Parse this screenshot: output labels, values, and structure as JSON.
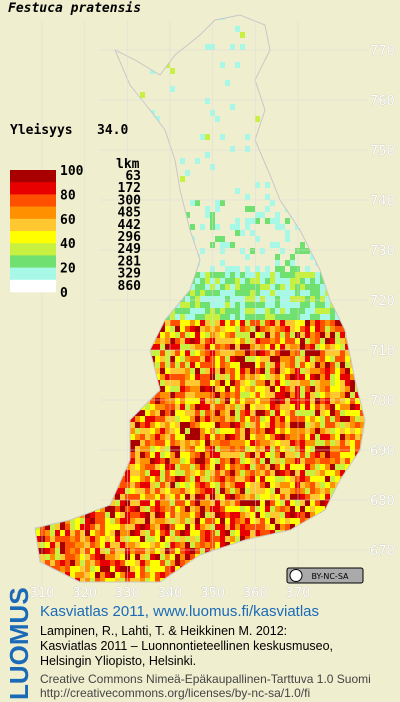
{
  "title": "Festuca pratensis",
  "frequency": {
    "label": "Yleisyys",
    "value": "34.0"
  },
  "legend": {
    "count_header": "lkm",
    "levels": [
      100,
      80,
      60,
      40,
      20,
      0
    ],
    "counts": [
      63,
      172,
      300,
      485,
      442,
      296,
      249,
      281,
      329,
      860
    ],
    "colors": [
      "#a80000",
      "#e80000",
      "#ff5000",
      "#ff9000",
      "#ffc830",
      "#ffff00",
      "#c8f040",
      "#70e070",
      "#a8f8e8",
      "#ffffff"
    ]
  },
  "map": {
    "yticks": [
      770,
      760,
      750,
      740,
      730,
      720,
      710,
      700,
      690,
      680,
      670
    ],
    "xticks": [
      310,
      320,
      330,
      340,
      350,
      360,
      370
    ],
    "license_badge": "BY-NC-SA"
  },
  "footer": {
    "brand": "LUOMUS",
    "headline": "Kasviatlas 2011, www.luomus.fi/kasviatlas",
    "lines": [
      "Lampinen, R., Lahti, T. & Heikkinen M. 2012:",
      "Kasviatlas 2011 – Luonnontieteellinen keskusmuseo,",
      "Helsingin Yliopisto, Helsinki."
    ],
    "license": [
      "Creative Commons Nimeä-Epäkaupallinen-Tarttuva 1.0 Suomi",
      "http://creativecommons.org/licenses/by-nc-sa/1.0/fi"
    ]
  }
}
